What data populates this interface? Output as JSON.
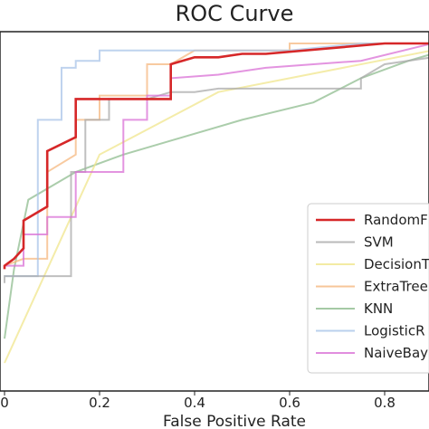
{
  "chart_data": {
    "type": "line",
    "title": "ROC Curve",
    "xlabel": "False Positive Rate",
    "ylabel": "",
    "xlim": [
      0,
      0.9
    ],
    "ylim": [
      0,
      1
    ],
    "xticks": [
      "0",
      "0.2",
      "0.4",
      "0.6",
      "0.8"
    ],
    "xtick_values": [
      0,
      0.2,
      0.4,
      0.6,
      0.8
    ],
    "grid": false,
    "legend_placement": "bottom-right",
    "series": [
      {
        "name": "RandomF",
        "color": "#d62728",
        "x": [
          0,
          0,
          0.02,
          0.04,
          0.04,
          0.09,
          0.09,
          0.15,
          0.15,
          0.35,
          0.35,
          0.4,
          0.45,
          0.5,
          0.55,
          0.8,
          0.9
        ],
        "y": [
          0.27,
          0.28,
          0.3,
          0.33,
          0.41,
          0.45,
          0.61,
          0.65,
          0.76,
          0.76,
          0.86,
          0.88,
          0.88,
          0.89,
          0.89,
          0.92,
          0.92
        ]
      },
      {
        "name": "SVM",
        "color": "#a9a9a9",
        "x": [
          0,
          0,
          0.04,
          0.14,
          0.14,
          0.17,
          0.17,
          0.22,
          0.22,
          0.3,
          0.35,
          0.4,
          0.45,
          0.55,
          0.7,
          0.75,
          0.75,
          0.8,
          0.9
        ],
        "y": [
          0.23,
          0.25,
          0.25,
          0.25,
          0.55,
          0.55,
          0.7,
          0.7,
          0.76,
          0.76,
          0.78,
          0.78,
          0.79,
          0.79,
          0.79,
          0.79,
          0.82,
          0.86,
          0.88
        ]
      },
      {
        "name": "DecisionT",
        "color": "#f0e68c",
        "x": [
          0,
          0.1,
          0.2,
          0.45,
          0.9
        ],
        "y": [
          0,
          0.3,
          0.6,
          0.78,
          0.9
        ]
      },
      {
        "name": "ExtraTree",
        "color": "#f5b880",
        "x": [
          0,
          0.04,
          0.09,
          0.09,
          0.15,
          0.15,
          0.2,
          0.2,
          0.3,
          0.3,
          0.35,
          0.4,
          0.55,
          0.6,
          0.6,
          0.9
        ],
        "y": [
          0.28,
          0.3,
          0.3,
          0.55,
          0.6,
          0.7,
          0.7,
          0.77,
          0.77,
          0.86,
          0.86,
          0.9,
          0.9,
          0.9,
          0.92,
          0.92
        ]
      },
      {
        "name": "KNN",
        "color": "#8fbc8f",
        "x": [
          0,
          0.02,
          0.05,
          0.15,
          0.25,
          0.35,
          0.5,
          0.65,
          0.75,
          0.85,
          0.9
        ],
        "y": [
          0.07,
          0.27,
          0.47,
          0.55,
          0.6,
          0.64,
          0.7,
          0.75,
          0.82,
          0.87,
          0.89
        ]
      },
      {
        "name": "LogisticR",
        "color": "#a9c4e8",
        "x": [
          0,
          0.04,
          0.07,
          0.07,
          0.12,
          0.12,
          0.15,
          0.15,
          0.2,
          0.2,
          0.25,
          0.3,
          0.4,
          0.55,
          0.6,
          0.75,
          0.9
        ],
        "y": [
          0.25,
          0.25,
          0.25,
          0.7,
          0.7,
          0.85,
          0.85,
          0.87,
          0.87,
          0.9,
          0.9,
          0.9,
          0.9,
          0.9,
          0.9,
          0.92,
          0.92
        ]
      },
      {
        "name": "NaiveBay",
        "color": "#da70d6",
        "x": [
          0,
          0.04,
          0.04,
          0.09,
          0.09,
          0.15,
          0.15,
          0.25,
          0.25,
          0.3,
          0.3,
          0.35,
          0.35,
          0.45,
          0.55,
          0.75,
          0.9
        ],
        "y": [
          0.28,
          0.28,
          0.37,
          0.37,
          0.42,
          0.42,
          0.55,
          0.55,
          0.7,
          0.7,
          0.77,
          0.77,
          0.82,
          0.83,
          0.85,
          0.87,
          0.92
        ]
      }
    ]
  }
}
